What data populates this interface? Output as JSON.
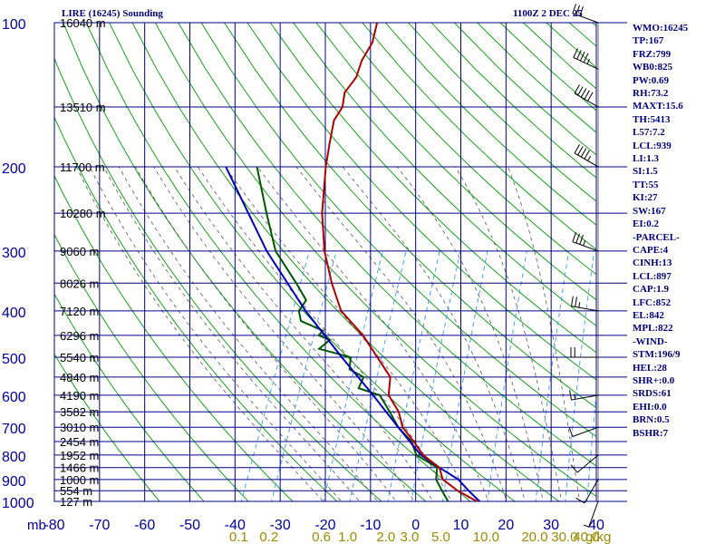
{
  "header": {
    "title": "LIRE (16245) Sounding",
    "time": "1100Z  2 DEC 25"
  },
  "indices": [
    "WMO:16245",
    "TP:167",
    "FRZ:799",
    "WB0:825",
    "PW:0.69",
    "RH:73.2",
    "MAXT:15.6",
    "TH:5413",
    "L57:7.2",
    "LCL:939",
    "LI:1.3",
    "SI:1.5",
    "TT:55",
    "KI:27",
    "SW:167",
    "EI:0.2",
    "-PARCEL-",
    "CAPE:4",
    "CINH:13",
    "LCL:897",
    "CAP:1.9",
    "LFC:852",
    "EL:842",
    "MPL:822",
    "-WIND-",
    "STM:196/9",
    "HEL:28",
    "SHR+:0.0",
    "SRDS:61",
    "EHI:0.0",
    "BRN:0.5",
    "BSHR:7"
  ],
  "chart_data": {
    "type": "skew-t",
    "pressure_ticks": [
      "100",
      "200",
      "300",
      "400",
      "500",
      "600",
      "700",
      "800",
      "900",
      "1000"
    ],
    "pressure_unit_label": "mb",
    "temperature_ticks": [
      "-80",
      "-70",
      "-60",
      "-50",
      "-40",
      "-30",
      "-20",
      "-10",
      "0",
      "10",
      "20",
      "30",
      "40"
    ],
    "mixing_ratio_label": "g/kg",
    "mixing_ratio_ticks": [
      "0.1",
      "0.2",
      "0.6",
      "1.0",
      "2.0",
      "3.0",
      "5.0",
      "10.0",
      "20.0",
      "30.0",
      "40.0"
    ],
    "heights": [
      {
        "p": 100,
        "label": "16040 m"
      },
      {
        "p": 150,
        "label": "13510 m"
      },
      {
        "p": 200,
        "label": "11700 m"
      },
      {
        "p": 250,
        "label": "10280 m"
      },
      {
        "p": 300,
        "label": "9060 m"
      },
      {
        "p": 350,
        "label": "8026 m"
      },
      {
        "p": 400,
        "label": "7120 m"
      },
      {
        "p": 450,
        "label": "6296 m"
      },
      {
        "p": 500,
        "label": "5540 m"
      },
      {
        "p": 550,
        "label": "4840 m"
      },
      {
        "p": 600,
        "label": "4190 m"
      },
      {
        "p": 650,
        "label": "3582 m"
      },
      {
        "p": 700,
        "label": "3010 m"
      },
      {
        "p": 750,
        "label": "2454 m"
      },
      {
        "p": 800,
        "label": "1952 m"
      },
      {
        "p": 850,
        "label": "1466 m"
      },
      {
        "p": 900,
        "label": "1000 m"
      },
      {
        "p": 950,
        "label": "554 m"
      },
      {
        "p": 1000,
        "label": "127 m"
      }
    ],
    "temperature": [
      [
        1013,
        13.0
      ],
      [
        1000,
        11.5
      ],
      [
        950,
        6.0
      ],
      [
        900,
        1.5
      ],
      [
        850,
        -0.5
      ],
      [
        800,
        -5.5
      ],
      [
        750,
        -9.0
      ],
      [
        700,
        -13.0
      ],
      [
        650,
        -15.5
      ],
      [
        600,
        -19.5
      ],
      [
        550,
        -21.0
      ],
      [
        500,
        -26.0
      ],
      [
        450,
        -31.5
      ],
      [
        400,
        -39.0
      ],
      [
        350,
        -44.0
      ],
      [
        300,
        -49.0
      ],
      [
        250,
        -53.5
      ],
      [
        200,
        -57.5
      ],
      [
        180,
        -59.0
      ],
      [
        160,
        -60.5
      ],
      [
        150,
        -60.0
      ],
      [
        140,
        -61.0
      ],
      [
        130,
        -60.0
      ],
      [
        120,
        -60.5
      ],
      [
        110,
        -60.0
      ],
      [
        100,
        -61.0
      ]
    ],
    "dewpoint": [
      [
        1013,
        5.5
      ],
      [
        1000,
        5.0
      ],
      [
        950,
        2.5
      ],
      [
        900,
        0.0
      ],
      [
        850,
        -1.0
      ],
      [
        800,
        -7.0
      ],
      [
        750,
        -9.5
      ],
      [
        700,
        -14.0
      ],
      [
        650,
        -17.5
      ],
      [
        600,
        -21.5
      ],
      [
        580,
        -27.0
      ],
      [
        550,
        -27.0
      ],
      [
        530,
        -31.0
      ],
      [
        500,
        -32.0
      ],
      [
        480,
        -40.0
      ],
      [
        460,
        -38.5
      ],
      [
        450,
        -41.5
      ],
      [
        440,
        -41.0
      ],
      [
        420,
        -47.0
      ],
      [
        400,
        -48.5
      ],
      [
        380,
        -48.0
      ],
      [
        350,
        -52.0
      ],
      [
        300,
        -60.0
      ],
      [
        250,
        -66.0
      ],
      [
        200,
        -73.0
      ]
    ],
    "parcel": [
      [
        1013,
        13.0
      ],
      [
        950,
        8.5
      ],
      [
        900,
        5.0
      ],
      [
        850,
        -0.5
      ],
      [
        800,
        -6.0
      ],
      [
        700,
        -14.0
      ],
      [
        600,
        -23.0
      ],
      [
        500,
        -34.0
      ],
      [
        400,
        -47.0
      ],
      [
        300,
        -62.0
      ],
      [
        200,
        -80.0
      ]
    ],
    "wind_barbs": [
      {
        "p": 1000,
        "dir": 200,
        "spd": 5
      },
      {
        "p": 900,
        "dir": 210,
        "spd": 10
      },
      {
        "p": 800,
        "dir": 230,
        "spd": 10
      },
      {
        "p": 700,
        "dir": 250,
        "spd": 10
      },
      {
        "p": 600,
        "dir": 260,
        "spd": 15
      },
      {
        "p": 500,
        "dir": 270,
        "spd": 20
      },
      {
        "p": 400,
        "dir": 280,
        "spd": 25
      },
      {
        "p": 300,
        "dir": 290,
        "spd": 35
      },
      {
        "p": 200,
        "dir": 300,
        "spd": 45
      },
      {
        "p": 150,
        "dir": 300,
        "spd": 50
      },
      {
        "p": 125,
        "dir": 295,
        "spd": 45
      },
      {
        "p": 100,
        "dir": 290,
        "spd": 30
      }
    ],
    "colors": {
      "grid": "#00008b",
      "dry_adiabat": "#009a00",
      "moist_adiabat": "#555555",
      "mixing_ratio": "#3399ff",
      "temperature": "#b00000",
      "dewpoint": "#005500",
      "parcel": "#0000bb",
      "tick_label": "#0000a0",
      "mixing_label": "#9a8a00"
    }
  }
}
